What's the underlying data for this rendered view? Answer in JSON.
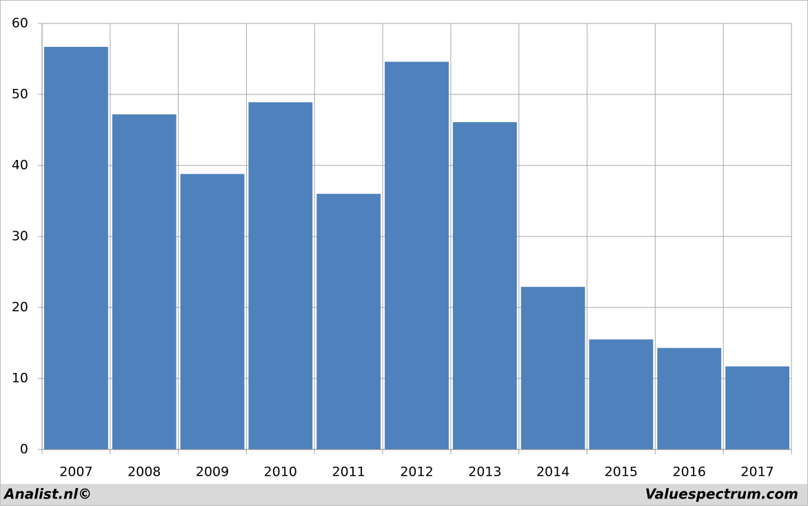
{
  "chart_data": {
    "type": "bar",
    "categories": [
      "2007",
      "2008",
      "2009",
      "2010",
      "2011",
      "2012",
      "2013",
      "2014",
      "2015",
      "2016",
      "2017"
    ],
    "values": [
      56.7,
      47.2,
      38.8,
      48.9,
      36.0,
      54.6,
      46.1,
      22.9,
      15.5,
      14.3,
      11.7
    ],
    "color": "#4f81bd",
    "ylim": [
      0,
      60
    ],
    "yticks": [
      0,
      10,
      20,
      30,
      40,
      50,
      60
    ],
    "grid": true
  },
  "footer": {
    "left": "Analist.nl©",
    "right": "Valuespectrum.com"
  }
}
